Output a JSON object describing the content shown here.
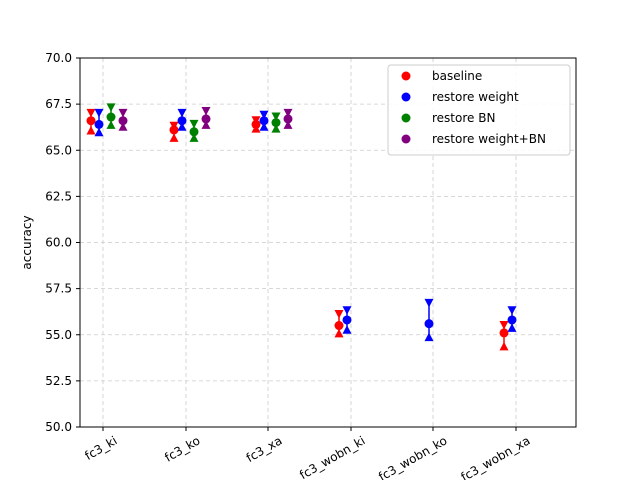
{
  "chart_data": {
    "type": "scatter",
    "title": "",
    "xlabel": "",
    "ylabel": "accuracy",
    "categories": [
      "fc3_ki",
      "fc3_ko",
      "fc3_xa",
      "fc3_wobn_ki",
      "fc3_wobn_ko",
      "fc3_wobn_xa"
    ],
    "ylim": [
      50.0,
      70.0
    ],
    "yticks": [
      "50.0",
      "52.5",
      "55.0",
      "57.5",
      "60.0",
      "62.5",
      "65.0",
      "67.5",
      "70.0"
    ],
    "grid": true,
    "legend_position": "top-right",
    "series": [
      {
        "name": "baseline",
        "color": "#ff0000",
        "points": [
          {
            "category": "fc3_ki",
            "y": 66.6,
            "low": 66.1,
            "high": 67.0
          },
          {
            "category": "fc3_ko",
            "y": 66.1,
            "low": 65.7,
            "high": 66.3
          },
          {
            "category": "fc3_xa",
            "y": 66.4,
            "low": 66.2,
            "high": 66.6
          },
          {
            "category": "fc3_wobn_ki",
            "y": 55.5,
            "low": 55.1,
            "high": 56.1
          },
          {
            "category": "fc3_wobn_xa",
            "y": 55.1,
            "low": 54.4,
            "high": 55.5
          }
        ]
      },
      {
        "name": "restore weight",
        "color": "#0000ff",
        "points": [
          {
            "category": "fc3_ki",
            "y": 66.4,
            "low": 66.0,
            "high": 67.0
          },
          {
            "category": "fc3_ko",
            "y": 66.6,
            "low": 66.3,
            "high": 67.0
          },
          {
            "category": "fc3_xa",
            "y": 66.6,
            "low": 66.3,
            "high": 66.9
          },
          {
            "category": "fc3_wobn_ki",
            "y": 55.8,
            "low": 55.3,
            "high": 56.3
          },
          {
            "category": "fc3_wobn_ko",
            "y": 55.6,
            "low": 54.9,
            "high": 56.7
          },
          {
            "category": "fc3_wobn_xa",
            "y": 55.8,
            "low": 55.4,
            "high": 56.3
          }
        ]
      },
      {
        "name": "restore BN",
        "color": "#008000",
        "points": [
          {
            "category": "fc3_ki",
            "y": 66.8,
            "low": 66.4,
            "high": 67.3
          },
          {
            "category": "fc3_ko",
            "y": 66.0,
            "low": 65.7,
            "high": 66.4
          },
          {
            "category": "fc3_xa",
            "y": 66.5,
            "low": 66.2,
            "high": 66.8
          }
        ]
      },
      {
        "name": "restore weight+BN",
        "color": "#800080",
        "points": [
          {
            "category": "fc3_ki",
            "y": 66.6,
            "low": 66.3,
            "high": 67.0
          },
          {
            "category": "fc3_ko",
            "y": 66.7,
            "low": 66.4,
            "high": 67.1
          },
          {
            "category": "fc3_xa",
            "y": 66.7,
            "low": 66.4,
            "high": 67.0
          }
        ]
      }
    ]
  }
}
